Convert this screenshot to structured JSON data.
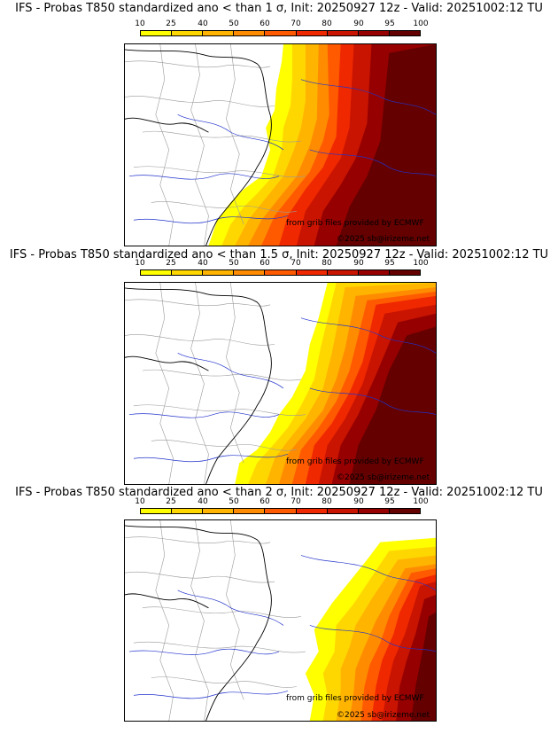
{
  "legend_ticks": [
    "10",
    "25",
    "40",
    "50",
    "60",
    "70",
    "80",
    "90",
    "95",
    "100"
  ],
  "legend_colors": [
    "#ffff00",
    "#ffd700",
    "#ffb400",
    "#ff8c00",
    "#ff5a00",
    "#f02800",
    "#c81400",
    "#960000",
    "#640000"
  ],
  "panels": [
    {
      "title": "IFS - Probas T850  standardized ano < than 1 σ, Init: 20250927 12z - Valid: 20251002:12 TU",
      "credit": "from grib files provided by ECMWF",
      "copyright": "©2025 sb@irizeme.net"
    },
    {
      "title": "IFS - Probas T850  standardized ano < than 1.5 σ, Init: 20250927 12z - Valid: 20251002:12 TU",
      "credit": "from grib files provided by ECMWF",
      "copyright": "©2025 sb@irizeme.net"
    },
    {
      "title": "IFS - Probas T850  standardized ano < than 2 σ, Init: 20250927 12z - Valid: 20251002:12 TU",
      "credit": "from grib files provided by ECMWF",
      "copyright": "©2025 sb@irizeme.net"
    }
  ]
}
